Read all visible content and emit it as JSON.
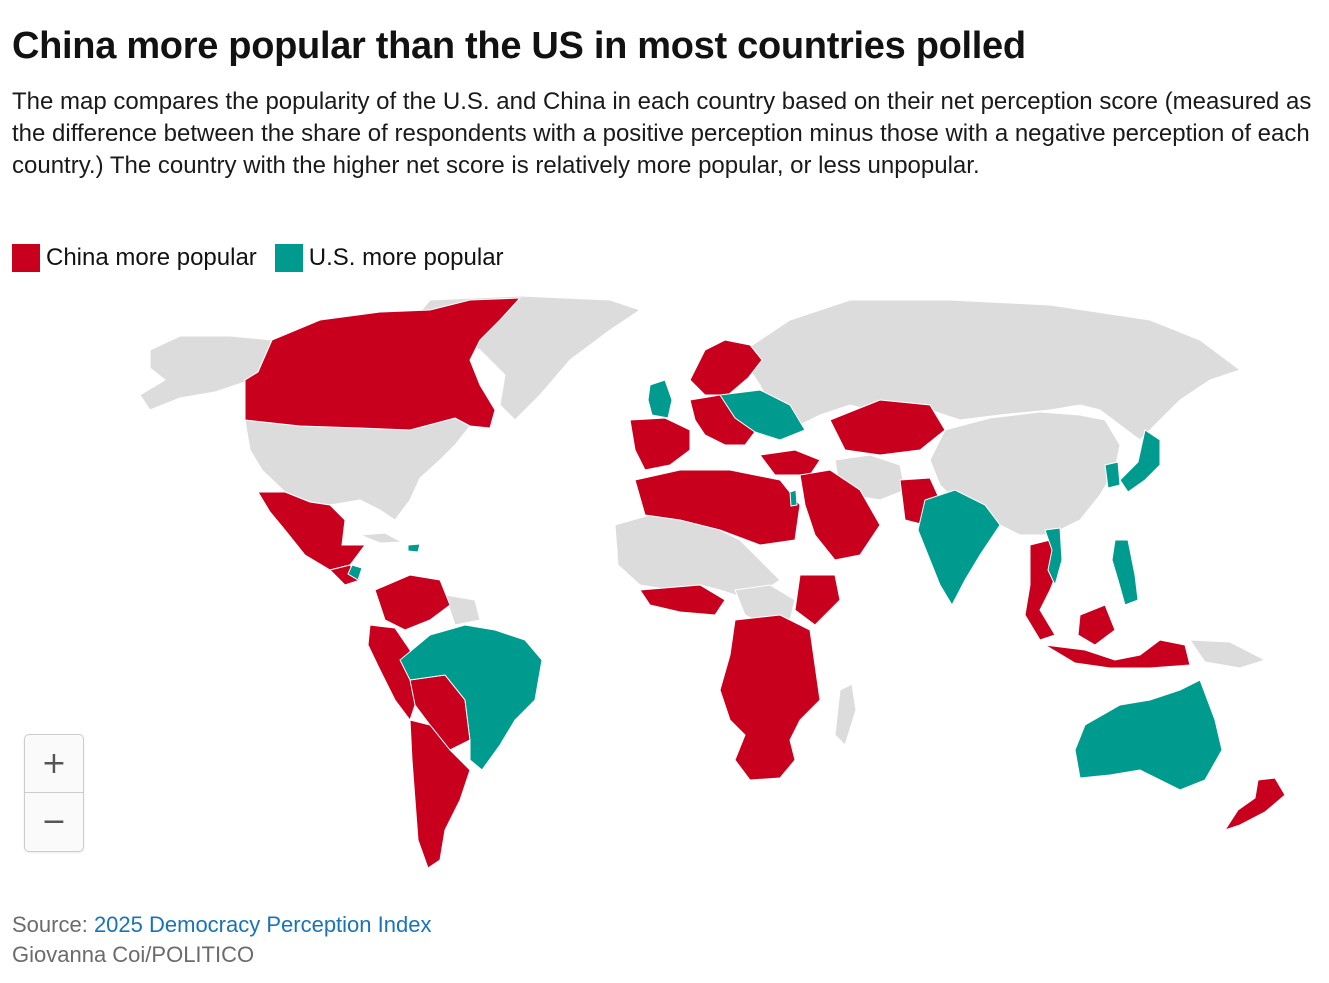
{
  "title": "China more popular than the US in most countries polled",
  "subtitle": "The map compares the popularity of the U.S. and China in each country based on their net perception score (measured as the difference between the share of respondents with a positive perception minus those with a negative perception of each country.) The country with the higher net score is relatively more popular, or less unpopular.",
  "legend": [
    {
      "label": "China more popular",
      "color": "#c8001e"
    },
    {
      "label": "U.S. more popular",
      "color": "#009b8f"
    }
  ],
  "map": {
    "no_data_color": "#dcdcdc",
    "regions": {
      "china_more_popular": [
        "Canada",
        "Mexico",
        "Guatemala",
        "Honduras",
        "Nicaragua",
        "Colombia",
        "Venezuela",
        "Ecuador",
        "Peru",
        "Bolivia",
        "Paraguay",
        "Chile",
        "Argentina",
        "Uruguay",
        "Ireland",
        "France",
        "Spain",
        "Portugal",
        "Germany",
        "Italy",
        "Norway",
        "Sweden",
        "Finland",
        "Greece",
        "Turkey",
        "Morocco",
        "Algeria",
        "Libya",
        "Egypt",
        "Saudi Arabia",
        "Iraq",
        "Iran",
        "Pakistan",
        "Bangladesh",
        "Kazakhstan",
        "Nigeria",
        "Ghana",
        "Kenya",
        "Ethiopia",
        "South Africa",
        "Angola",
        "Congo DR",
        "Tanzania",
        "Zambia",
        "Zimbabwe",
        "Thailand",
        "Malaysia",
        "Indonesia",
        "New Zealand"
      ],
      "us_more_popular": [
        "Brazil",
        "India",
        "Australia",
        "Japan",
        "South Korea",
        "Philippines",
        "Vietnam",
        "United Kingdom",
        "Poland",
        "Ukraine",
        "Romania",
        "Israel",
        "Panama",
        "Dominican Republic"
      ]
    }
  },
  "zoom": {
    "in_label": "+",
    "out_label": "−"
  },
  "footer": {
    "source_prefix": "Source: ",
    "source_link": "2025 Democracy Perception Index",
    "credit": "Giovanna Coi/POLITICO"
  }
}
